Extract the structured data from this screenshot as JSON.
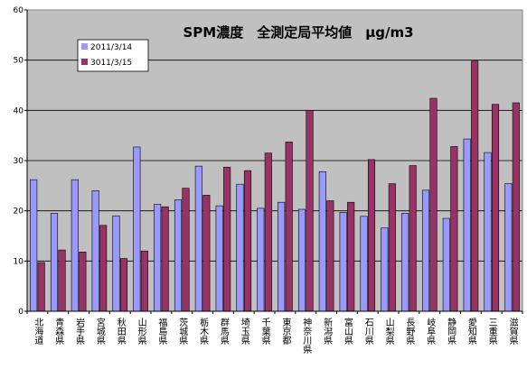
{
  "chart_data": {
    "type": "bar",
    "title": "SPM濃度　全測定局平均値　μg/m3",
    "ylim": [
      0,
      60
    ],
    "yticks": [
      0,
      10,
      20,
      30,
      40,
      50,
      60
    ],
    "grid": true,
    "legend_position": "top-left",
    "plot_background": "#c0c0c0",
    "categories": [
      "北海道",
      "青森県",
      "岩手県",
      "宮城県",
      "秋田県",
      "山形県",
      "福島県",
      "茨城県",
      "栃木県",
      "群馬県",
      "埼玉県",
      "千葉県",
      "東京都",
      "神奈川県",
      "新潟県",
      "富山県",
      "石川県",
      "山梨県",
      "長野県",
      "岐阜県",
      "静岡県",
      "愛知県",
      "三重県",
      "滋賀県"
    ],
    "series": [
      {
        "name": "2011/3/14",
        "color": "#9999ff",
        "values": [
          26.2,
          19.5,
          26.2,
          24.0,
          19.0,
          32.7,
          21.3,
          22.2,
          28.9,
          21.0,
          25.3,
          20.5,
          21.7,
          20.3,
          27.8,
          19.7,
          18.9,
          16.6,
          19.5,
          24.1,
          18.5,
          34.3,
          31.6,
          25.4
        ]
      },
      {
        "name": "3011/3/15",
        "color": "#993366",
        "values": [
          9.7,
          12.2,
          11.8,
          17.1,
          10.5,
          12.0,
          20.8,
          24.5,
          23.1,
          28.7,
          28.0,
          31.5,
          33.7,
          40.0,
          22.0,
          21.7,
          30.2,
          25.4,
          29.0,
          42.4,
          32.8,
          49.8,
          41.2,
          41.5
        ]
      }
    ]
  }
}
